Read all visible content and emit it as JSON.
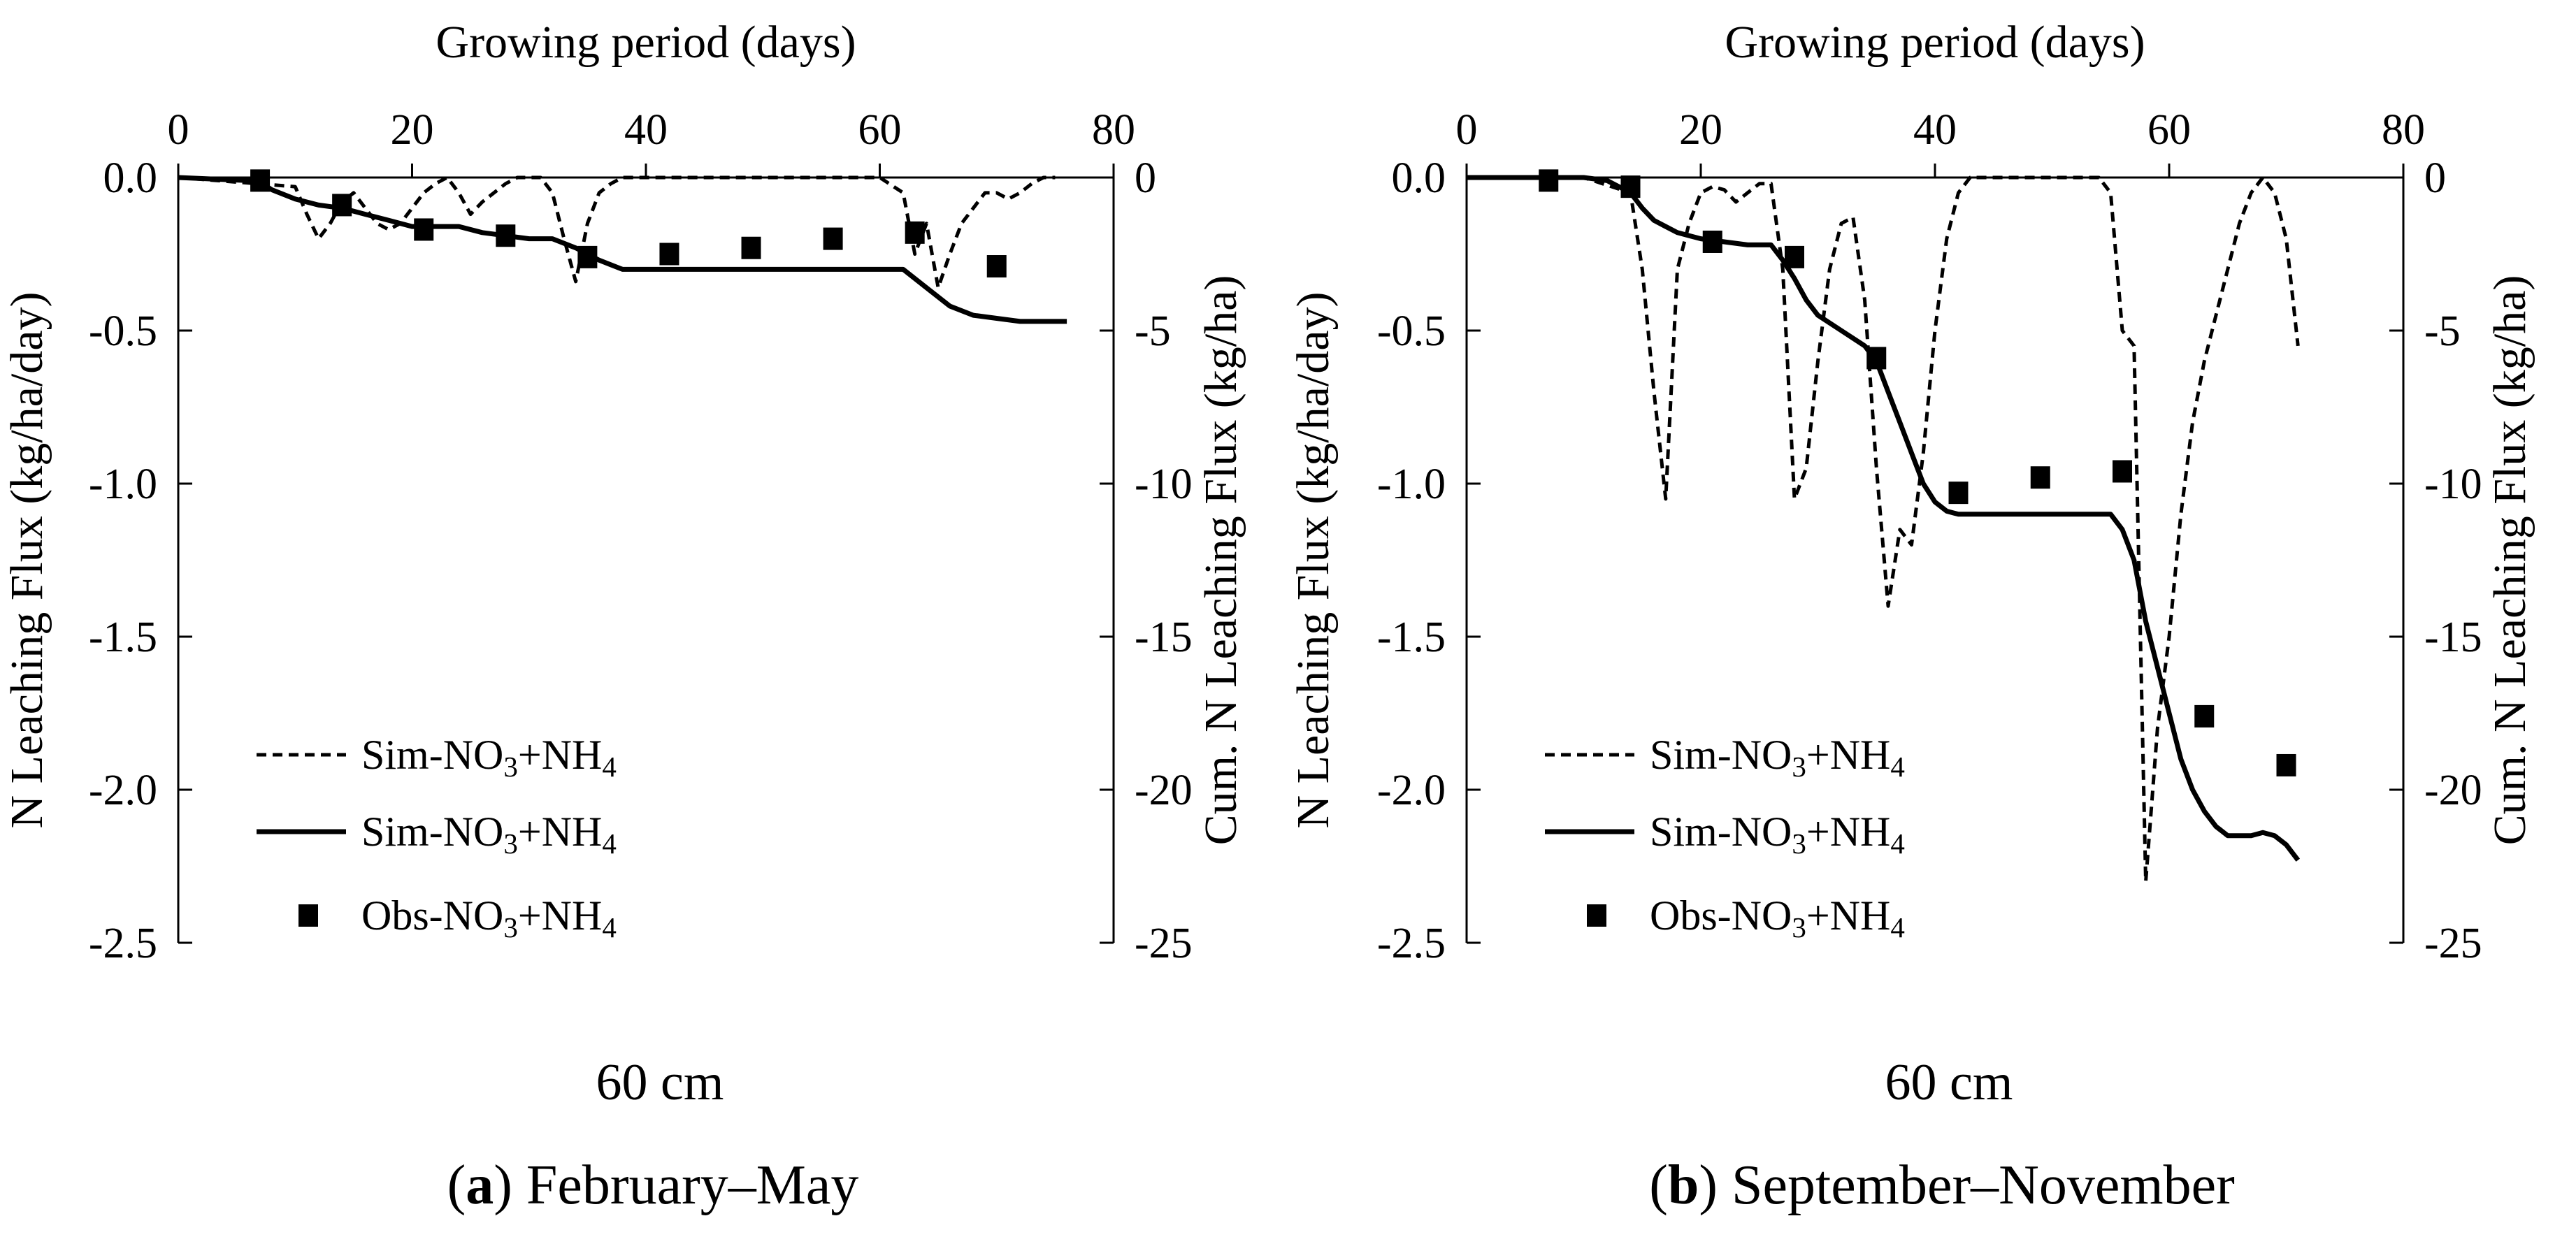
{
  "chart_data": [
    {
      "type": "line",
      "panel": "a",
      "depth_label": "60 cm",
      "caption_letter": "a",
      "caption_text": " February–May",
      "x_axis": {
        "label": "Growing period (days)",
        "range": [
          0,
          80
        ],
        "ticks": [
          0,
          20,
          40,
          60,
          80
        ],
        "tick_labels": [
          "0",
          "20",
          "40",
          "60",
          "80"
        ]
      },
      "y_left": {
        "label": "N Leaching  Flux  (kg/ha/day)",
        "range": [
          -2.5,
          0
        ],
        "ticks": [
          0,
          -0.5,
          -1,
          -1.5,
          -2,
          -2.5
        ],
        "tick_labels": [
          "0.0",
          "-0.5",
          "-1.0",
          "-1.5",
          "-2.0",
          "-2.5"
        ]
      },
      "y_right": {
        "label": "Cum. N Leaching  Flux  (kg/ha)",
        "range": [
          -25,
          0
        ],
        "ticks": [
          0,
          -5,
          -10,
          -15,
          -20,
          -25
        ],
        "tick_labels": [
          "0",
          "-5",
          "-10",
          "-15",
          "-20",
          "-25"
        ]
      },
      "legend": [
        "Sim-NO₃+NH₄",
        "Sim-NO₃+NH₄",
        "Obs-NO₃+NH₄"
      ],
      "series": [
        {
          "name": "Sim-NO₃+NH₄ (daily flux)",
          "style": "dashed",
          "axis": "left",
          "x": [
            0,
            10,
            11,
            12,
            13,
            14,
            15,
            16,
            17,
            18,
            19,
            20,
            21,
            22,
            23,
            24,
            25,
            26,
            27,
            28,
            29,
            30,
            31,
            32,
            33,
            34,
            35,
            36,
            37,
            38,
            40,
            50,
            60,
            62,
            63,
            64,
            65,
            66,
            67,
            68,
            69,
            70,
            71,
            72,
            73,
            74,
            75
          ],
          "y": [
            0,
            -0.03,
            -0.12,
            -0.2,
            -0.15,
            -0.08,
            -0.05,
            -0.1,
            -0.15,
            -0.17,
            -0.15,
            -0.1,
            -0.05,
            -0.02,
            0,
            -0.05,
            -0.12,
            -0.08,
            -0.05,
            -0.02,
            0,
            0,
            0,
            -0.05,
            -0.2,
            -0.34,
            -0.15,
            -0.05,
            -0.02,
            0,
            0,
            0,
            0,
            -0.05,
            -0.25,
            -0.15,
            -0.36,
            -0.25,
            -0.15,
            -0.1,
            -0.05,
            -0.05,
            -0.07,
            -0.05,
            -0.02,
            0,
            0
          ]
        },
        {
          "name": "Sim-NO₃+NH₄ (cumulative)",
          "style": "solid",
          "axis": "right",
          "x": [
            0,
            6,
            7,
            8,
            10,
            12,
            14,
            16,
            18,
            20,
            22,
            24,
            26,
            28,
            30,
            32,
            34,
            36,
            38,
            40,
            50,
            60,
            62,
            64,
            66,
            68,
            70,
            72,
            74,
            76
          ],
          "y": [
            0,
            -0.1,
            -0.15,
            -0.4,
            -0.7,
            -0.9,
            -1.0,
            -1.2,
            -1.4,
            -1.6,
            -1.6,
            -1.6,
            -1.8,
            -1.9,
            -2.0,
            -2.0,
            -2.3,
            -2.7,
            -3.0,
            -3.0,
            -3.0,
            -3.0,
            -3.0,
            -3.6,
            -4.2,
            -4.5,
            -4.6,
            -4.7,
            -4.7,
            -4.7
          ]
        },
        {
          "name": "Obs-NO₃+NH₄",
          "style": "marker",
          "axis": "right",
          "x": [
            7,
            14,
            21,
            28,
            35,
            42,
            49,
            56,
            63,
            70
          ],
          "y": [
            -0.1,
            -0.9,
            -1.7,
            -1.9,
            -2.6,
            -2.5,
            -2.3,
            -2.0,
            -1.8,
            -2.9
          ]
        }
      ]
    },
    {
      "type": "line",
      "panel": "b",
      "depth_label": "60 cm",
      "caption_letter": "b",
      "caption_text": " September–November",
      "x_axis": {
        "label": "Growing period (days)",
        "range": [
          0,
          80
        ],
        "ticks": [
          0,
          20,
          40,
          60,
          80
        ],
        "tick_labels": [
          "0",
          "20",
          "40",
          "60",
          "80"
        ]
      },
      "y_left": {
        "label": "N Leaching  Flux  (kg/ha/day)",
        "range": [
          -2.5,
          0
        ],
        "ticks": [
          0,
          -0.5,
          -1,
          -1.5,
          -2,
          -2.5
        ],
        "tick_labels": [
          "0.0",
          "-0.5",
          "-1.0",
          "-1.5",
          "-2.0",
          "-2.5"
        ]
      },
      "y_right": {
        "label": "Cum. N Leaching  Flux  (kg/ha)",
        "range": [
          -25,
          0
        ],
        "ticks": [
          0,
          -5,
          -10,
          -15,
          -20,
          -25
        ],
        "tick_labels": [
          "0",
          "-5",
          "-10",
          "-15",
          "-20",
          "-25"
        ]
      },
      "legend": [
        "Sim-NO₃+NH₄",
        "Sim-NO₃+NH₄",
        "Obs-NO₃+NH₄"
      ],
      "series": [
        {
          "name": "Sim-NO₃+NH₄ (daily flux)",
          "style": "dashed",
          "axis": "left",
          "x": [
            0,
            10,
            14,
            15,
            16,
            17,
            18,
            19,
            20,
            21,
            22,
            23,
            24,
            25,
            26,
            27,
            28,
            29,
            30,
            31,
            32,
            33,
            34,
            35,
            36,
            37,
            38,
            39,
            40,
            41,
            42,
            43,
            50,
            54,
            55,
            56,
            57,
            58,
            59,
            60,
            61,
            62,
            63,
            64,
            65,
            66,
            67,
            68,
            69,
            70,
            71
          ],
          "y": [
            0,
            0,
            -0.05,
            -0.3,
            -0.7,
            -1.05,
            -0.3,
            -0.15,
            -0.05,
            -0.03,
            -0.04,
            -0.08,
            -0.05,
            -0.02,
            -0.02,
            -0.3,
            -1.05,
            -0.95,
            -0.6,
            -0.3,
            -0.15,
            -0.13,
            -0.4,
            -0.95,
            -1.4,
            -1.15,
            -1.2,
            -0.9,
            -0.5,
            -0.2,
            -0.05,
            0,
            0,
            0,
            -0.05,
            -0.5,
            -0.55,
            -2.3,
            -1.8,
            -1.5,
            -1.1,
            -0.8,
            -0.6,
            -0.45,
            -0.3,
            -0.15,
            -0.05,
            0,
            -0.05,
            -0.2,
            -0.55
          ]
        },
        {
          "name": "Sim-NO₃+NH₄ (cumulative)",
          "style": "solid",
          "axis": "right",
          "x": [
            0,
            10,
            12,
            14,
            15,
            16,
            17,
            18,
            20,
            22,
            24,
            26,
            27,
            28,
            29,
            30,
            32,
            34,
            35,
            36,
            37,
            38,
            39,
            40,
            41,
            42,
            50,
            55,
            56,
            57,
            58,
            59,
            60,
            61,
            62,
            63,
            64,
            65,
            66,
            67,
            68,
            69,
            70,
            71
          ],
          "y": [
            0,
            0,
            -0.1,
            -0.5,
            -1.0,
            -1.4,
            -1.6,
            -1.8,
            -2.0,
            -2.1,
            -2.2,
            -2.2,
            -2.7,
            -3.3,
            -4.0,
            -4.5,
            -5.0,
            -5.5,
            -6.0,
            -7.0,
            -8.0,
            -9.0,
            -10.0,
            -10.6,
            -10.9,
            -11.0,
            -11.0,
            -11.0,
            -11.5,
            -12.5,
            -14.5,
            -16.0,
            -17.5,
            -19.0,
            -20.0,
            -20.7,
            -21.2,
            -21.5,
            -21.5,
            -21.5,
            -21.4,
            -21.5,
            -21.8,
            -22.3
          ]
        },
        {
          "name": "Obs-NO₃+NH₄",
          "style": "marker",
          "axis": "right",
          "x": [
            7,
            14,
            21,
            28,
            35,
            42,
            49,
            56,
            63,
            70
          ],
          "y": [
            -0.1,
            -0.3,
            -2.1,
            -2.6,
            -5.9,
            -10.3,
            -9.8,
            -9.6,
            -17.6,
            -19.2
          ]
        }
      ]
    }
  ]
}
